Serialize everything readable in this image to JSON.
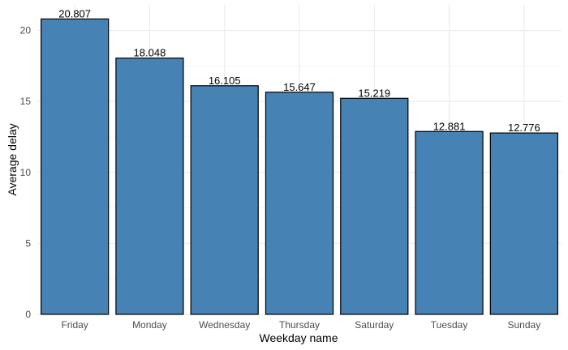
{
  "chart_data": {
    "type": "bar",
    "title": "",
    "xlabel": "Weekday name",
    "ylabel": "Average delay",
    "categories": [
      "Friday",
      "Monday",
      "Wednesday",
      "Thursday",
      "Saturday",
      "Tuesday",
      "Sunday"
    ],
    "values": [
      20.807,
      18.048,
      16.105,
      15.647,
      15.219,
      12.881,
      12.776
    ],
    "data_labels": [
      "20.807",
      "18.048",
      "16.105",
      "15.647",
      "15.219",
      "12.881",
      "12.776"
    ],
    "ylim": [
      0,
      21.8
    ],
    "yticks": [
      0,
      5,
      10,
      15,
      20
    ],
    "ytick_labels": [
      "0",
      "5",
      "10",
      "15",
      "20"
    ],
    "grid": true,
    "legend": "none",
    "bar_color": "#4682b4",
    "bar_outline_color": "#000000"
  }
}
